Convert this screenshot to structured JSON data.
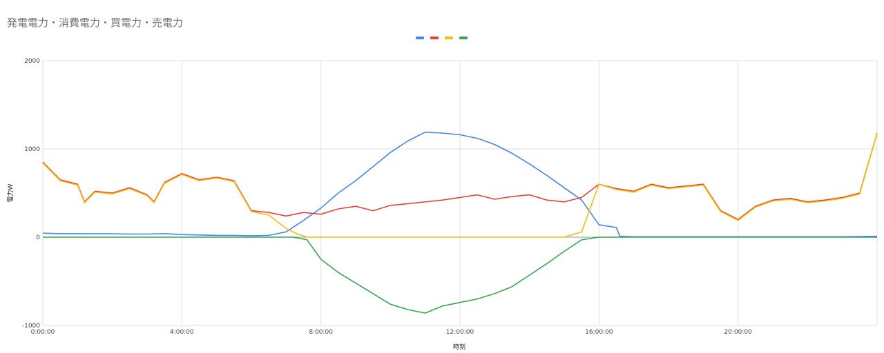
{
  "chart_data": {
    "type": "line",
    "title": "発電電力・消費電力・買電力・売電力",
    "xlabel": "時刻",
    "ylabel": "電力W",
    "x_unit": "hours",
    "xlim": [
      0,
      24
    ],
    "ylim": [
      -1000,
      2000
    ],
    "x_ticks": [
      {
        "value": 0,
        "label": "0:00:00"
      },
      {
        "value": 4,
        "label": "4:00:00"
      },
      {
        "value": 8,
        "label": "8:00:00"
      },
      {
        "value": 12,
        "label": "12:00:00"
      },
      {
        "value": 16,
        "label": "16:00:00"
      },
      {
        "value": 20,
        "label": "20:00:00"
      }
    ],
    "y_ticks": [
      {
        "value": 2000,
        "label": "2000"
      },
      {
        "value": 1000,
        "label": "1000"
      },
      {
        "value": 0,
        "label": "0"
      },
      {
        "value": -1000,
        "label": "-1000"
      }
    ],
    "grid": true,
    "legend": {
      "position": "top",
      "entries": [
        "",
        "",
        "",
        ""
      ]
    },
    "series": [
      {
        "color": "#4285f4",
        "x": [
          0,
          0.5,
          1,
          1.5,
          2,
          2.5,
          3,
          3.5,
          4,
          4.5,
          5,
          5.5,
          6,
          6.5,
          7,
          7.5,
          8,
          8.5,
          9,
          9.5,
          10,
          10.5,
          11,
          11.5,
          12,
          12.5,
          13,
          13.5,
          14,
          14.5,
          15,
          15.5,
          16,
          16.5,
          16.6,
          17,
          18,
          19,
          20,
          21,
          22,
          23,
          24
        ],
        "values": [
          45,
          40,
          40,
          38,
          38,
          35,
          35,
          40,
          30,
          25,
          20,
          20,
          15,
          20,
          60,
          190,
          330,
          500,
          640,
          800,
          960,
          1090,
          1190,
          1180,
          1160,
          1120,
          1050,
          950,
          830,
          700,
          560,
          420,
          140,
          110,
          10,
          5,
          5,
          5,
          5,
          5,
          5,
          5,
          10
        ]
      },
      {
        "color": "#ea4335",
        "x": [
          0,
          0.25,
          0.5,
          1,
          1.2,
          1.5,
          2,
          2.5,
          3,
          3.2,
          3.5,
          4,
          4.5,
          5,
          5.5,
          6,
          6.5,
          7,
          7.5,
          8,
          8.5,
          9,
          9.5,
          10,
          10.5,
          11,
          11.5,
          12,
          12.5,
          13,
          13.5,
          14,
          14.5,
          15,
          15.5,
          16,
          16.5,
          17,
          17.5,
          18,
          18.5,
          19,
          19.5,
          20,
          20.5,
          21,
          21.5,
          22,
          22.5,
          23,
          23.5,
          24
        ],
        "values": [
          850,
          750,
          650,
          600,
          400,
          520,
          500,
          560,
          480,
          400,
          620,
          720,
          650,
          680,
          640,
          300,
          280,
          240,
          280,
          260,
          320,
          350,
          300,
          360,
          380,
          400,
          420,
          450,
          480,
          430,
          460,
          480,
          420,
          400,
          450,
          600,
          550,
          520,
          600,
          560,
          580,
          600,
          300,
          200,
          350,
          420,
          440,
          400,
          420,
          450,
          500,
          1180
        ]
      },
      {
        "color": "#fbbc04",
        "x": [
          0,
          0.25,
          0.5,
          1,
          1.2,
          1.5,
          2,
          2.5,
          3,
          3.2,
          3.5,
          4,
          4.5,
          5,
          5.5,
          6,
          6.5,
          7,
          7.3,
          7.6,
          8,
          9,
          10,
          11,
          12,
          13,
          14,
          15,
          15.5,
          16,
          16.5,
          17,
          17.5,
          18,
          18.5,
          19,
          19.5,
          20,
          20.5,
          21,
          21.5,
          22,
          22.5,
          23,
          23.5,
          24
        ],
        "values": [
          840,
          740,
          640,
          590,
          390,
          510,
          490,
          550,
          470,
          390,
          610,
          710,
          640,
          670,
          630,
          290,
          250,
          100,
          40,
          0,
          0,
          0,
          0,
          0,
          0,
          0,
          0,
          0,
          60,
          600,
          540,
          510,
          590,
          550,
          570,
          590,
          290,
          190,
          340,
          410,
          430,
          390,
          410,
          440,
          490,
          1180
        ]
      },
      {
        "color": "#34a853",
        "x": [
          0,
          1,
          2,
          3,
          4,
          5,
          6,
          6.8,
          7.2,
          7.6,
          8,
          8.5,
          9,
          9.5,
          10,
          10.5,
          11,
          11.5,
          12,
          12.5,
          13,
          13.5,
          14,
          14.5,
          15,
          15.5,
          16,
          17,
          18,
          19,
          20,
          21,
          22,
          23,
          24
        ],
        "values": [
          0,
          0,
          0,
          0,
          0,
          0,
          0,
          0,
          0,
          -30,
          -250,
          -400,
          -520,
          -640,
          -760,
          -820,
          -860,
          -780,
          -740,
          -700,
          -640,
          -560,
          -430,
          -300,
          -160,
          -30,
          0,
          0,
          0,
          0,
          0,
          0,
          0,
          0,
          0
        ]
      }
    ]
  }
}
